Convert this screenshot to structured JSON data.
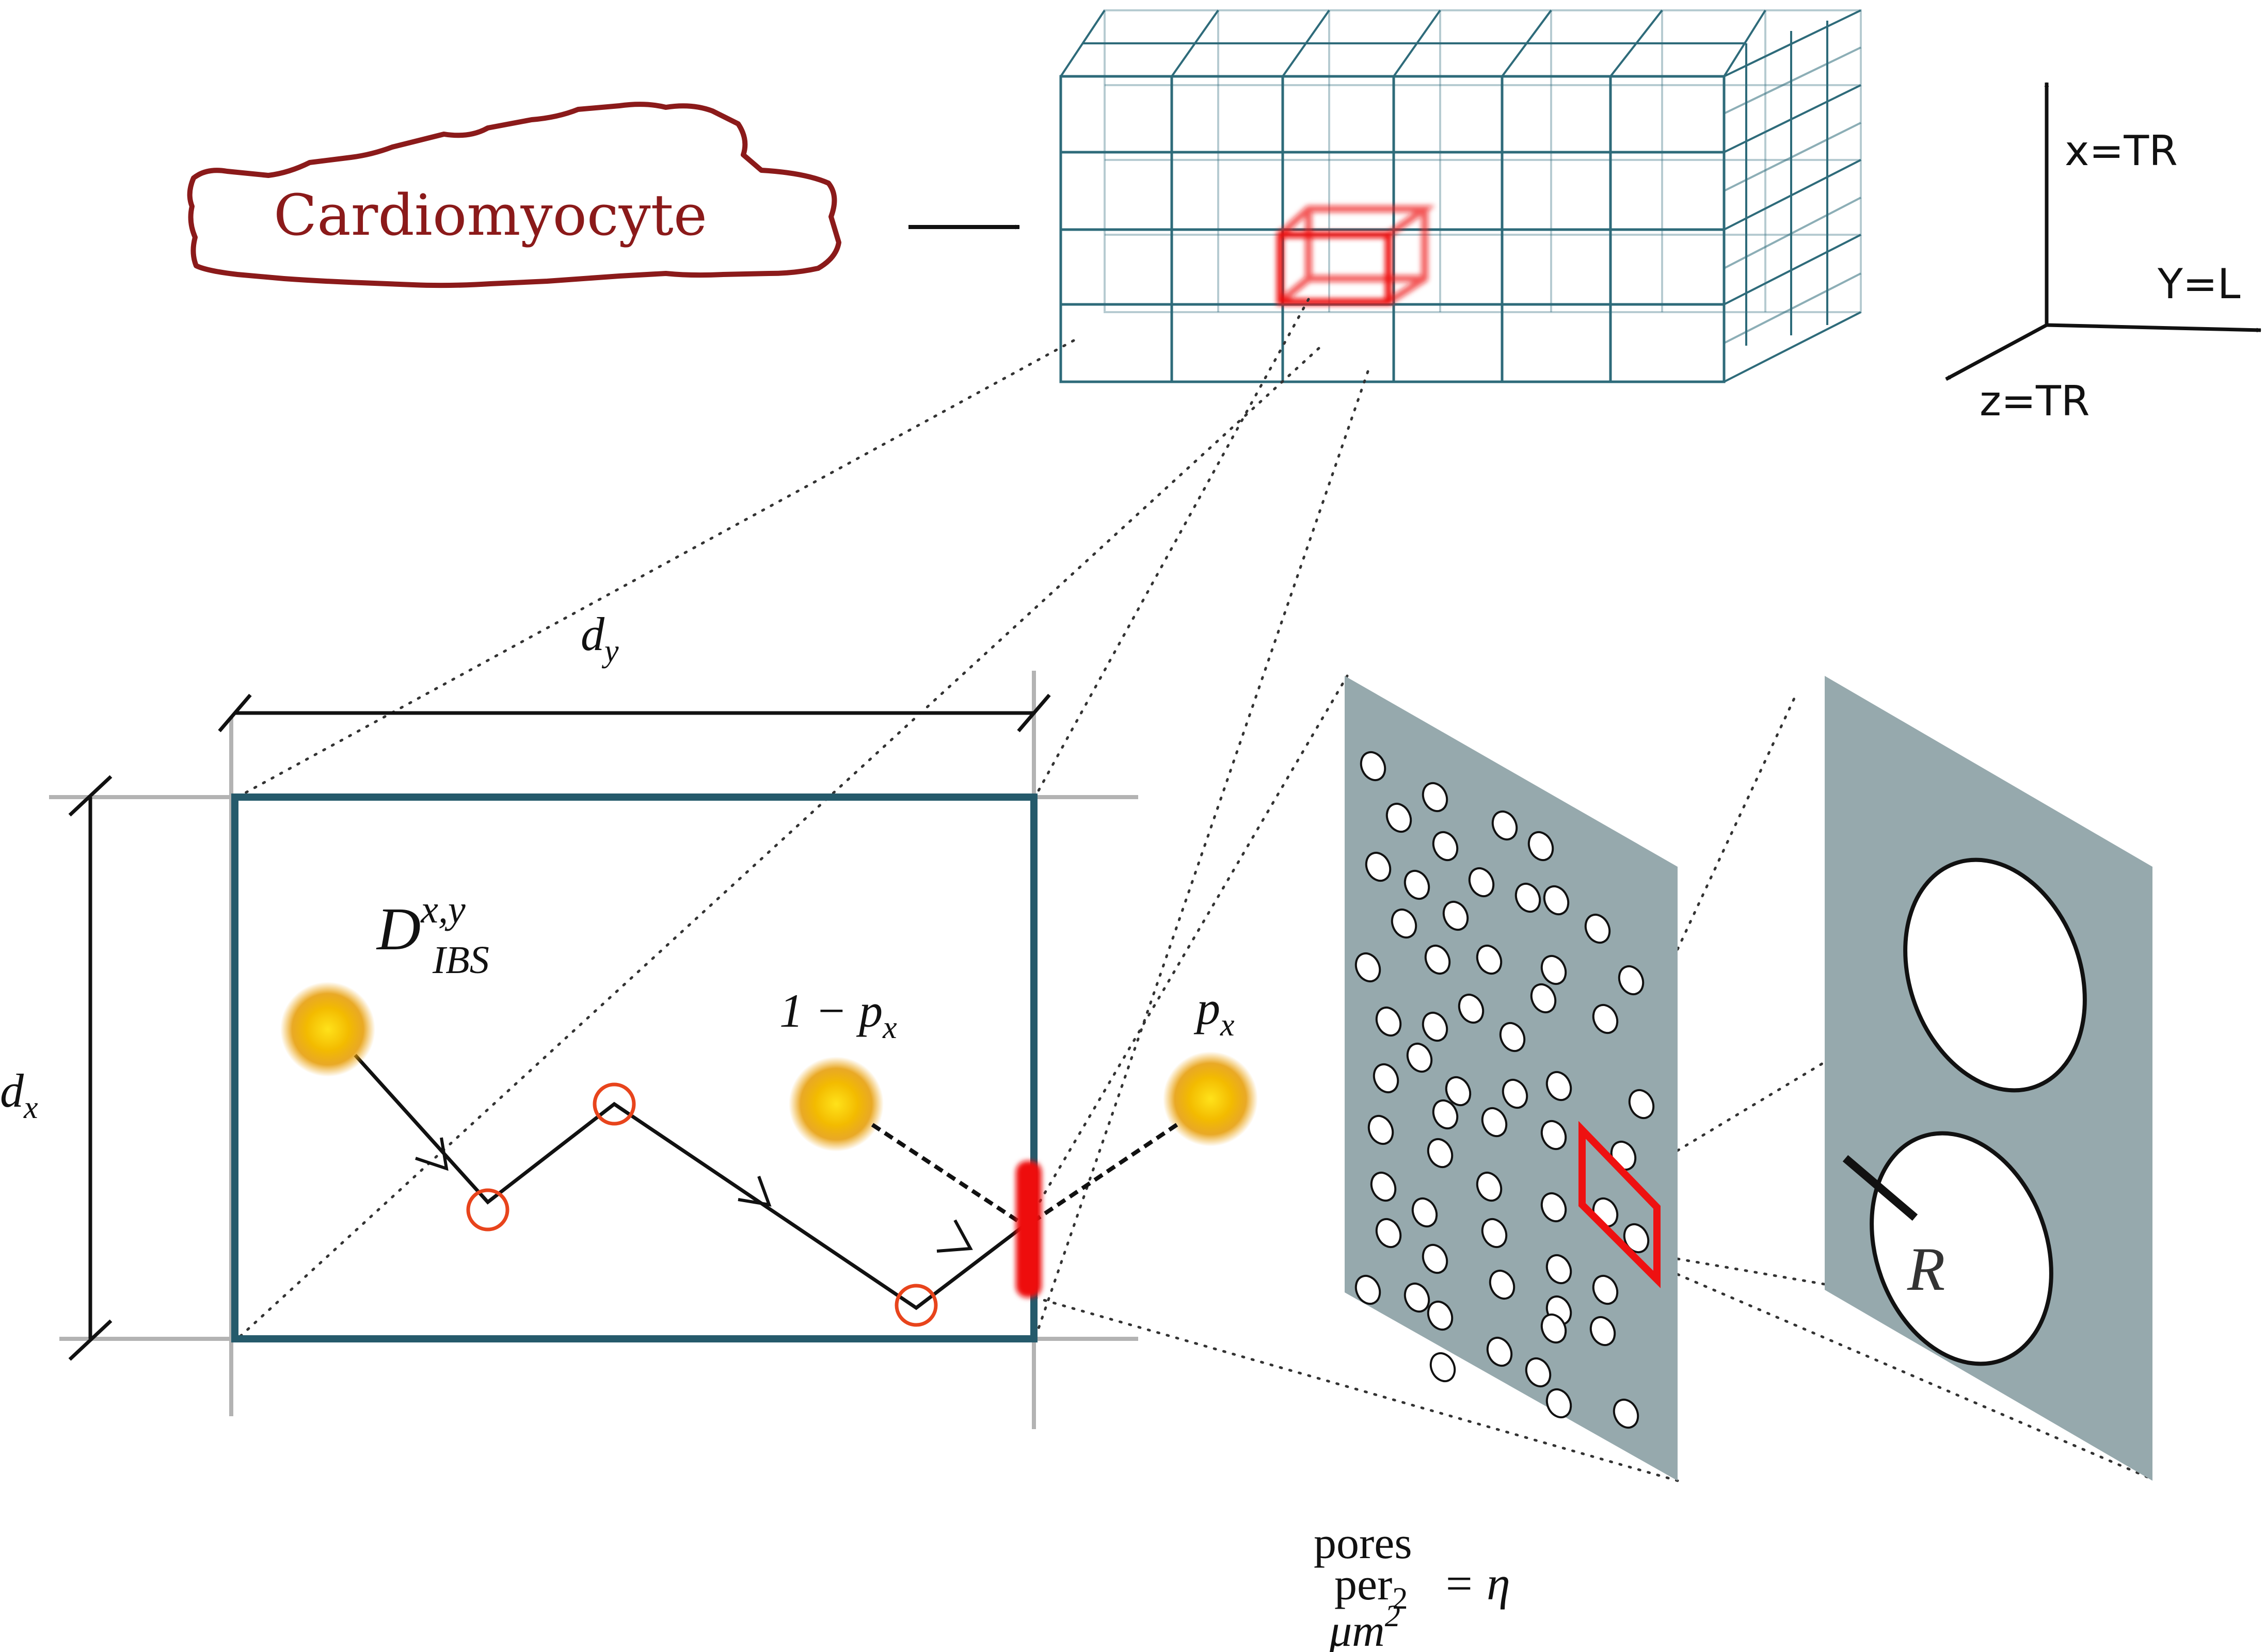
{
  "cell_label": "Cardiomyocyte",
  "axes": {
    "x_label": "x=TR",
    "y_label": "Y=L",
    "z_label": "z=TR"
  },
  "cell_box": {
    "dim_y_base": "d",
    "dim_y_sub": "y",
    "dim_x_base": "d",
    "dim_x_sub": "x",
    "diff_base": "D",
    "diff_sup": "x,y",
    "diff_sub": "IBS",
    "stay_label": "1 − p",
    "stay_sub": "x",
    "cross_base": "p",
    "cross_sub": "x"
  },
  "membrane": {
    "radius_label": "R",
    "pores_word": "pores",
    "per_word": "per",
    "per_sub": "2",
    "unit_base": "μm",
    "unit_sup": "2",
    "equals_eta": "= η"
  },
  "colors": {
    "outline": "#8b1a1a",
    "grid": "#2e6b7a",
    "box": "#255a6b",
    "highlight": "#ee1111",
    "membrane": "#96a9ad",
    "marker": "#e8441c"
  }
}
